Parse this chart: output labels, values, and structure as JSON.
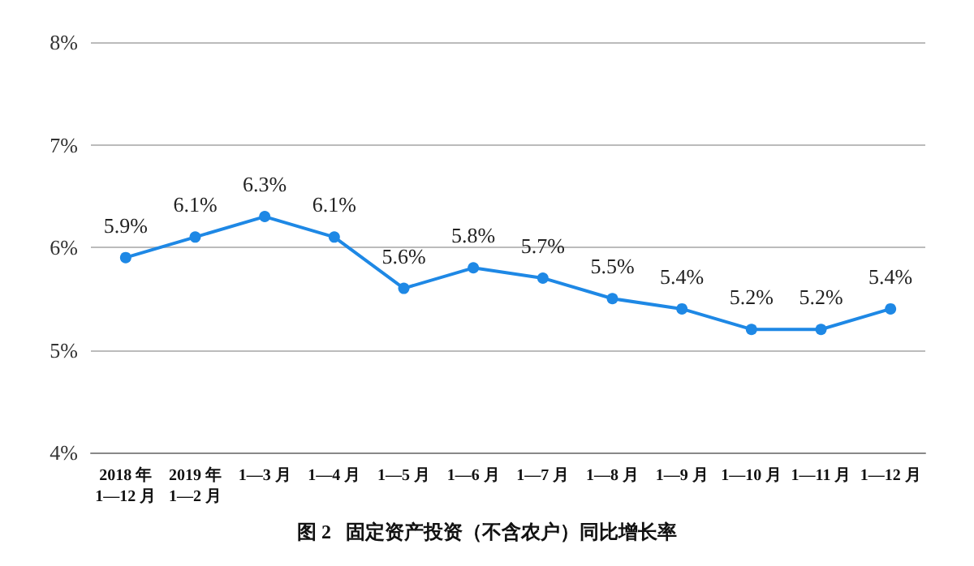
{
  "chart_data": {
    "type": "line",
    "title": "图 2   固定资产投资（不含农户）同比增长率",
    "categories": [
      "2018 年\n1—12 月",
      "2019 年\n1—2 月",
      "1—3 月",
      "1—4 月",
      "1—5 月",
      "1—6 月",
      "1—7 月",
      "1—8 月",
      "1—9 月",
      "1—10 月",
      "1—11 月",
      "1—12 月"
    ],
    "series": [
      {
        "color": "#1e88e5",
        "values": [
          5.9,
          6.1,
          6.3,
          6.1,
          5.6,
          5.8,
          5.7,
          5.5,
          5.4,
          5.2,
          5.2,
          5.4
        ],
        "value_labels": [
          "5.9%",
          "6.1%",
          "6.3%",
          "6.1%",
          "5.6%",
          "5.8%",
          "5.7%",
          "5.5%",
          "5.4%",
          "5.2%",
          "5.2%",
          "5.4%"
        ]
      }
    ],
    "ylim": [
      4,
      8
    ],
    "yticks": [
      {
        "value": 4,
        "label": "4%"
      },
      {
        "value": 5,
        "label": "5%"
      },
      {
        "value": 6,
        "label": "6%"
      },
      {
        "value": 7,
        "label": "7%"
      },
      {
        "value": 8,
        "label": "8%"
      }
    ],
    "grid": "y",
    "marker": "circle",
    "line_style": "solid"
  }
}
